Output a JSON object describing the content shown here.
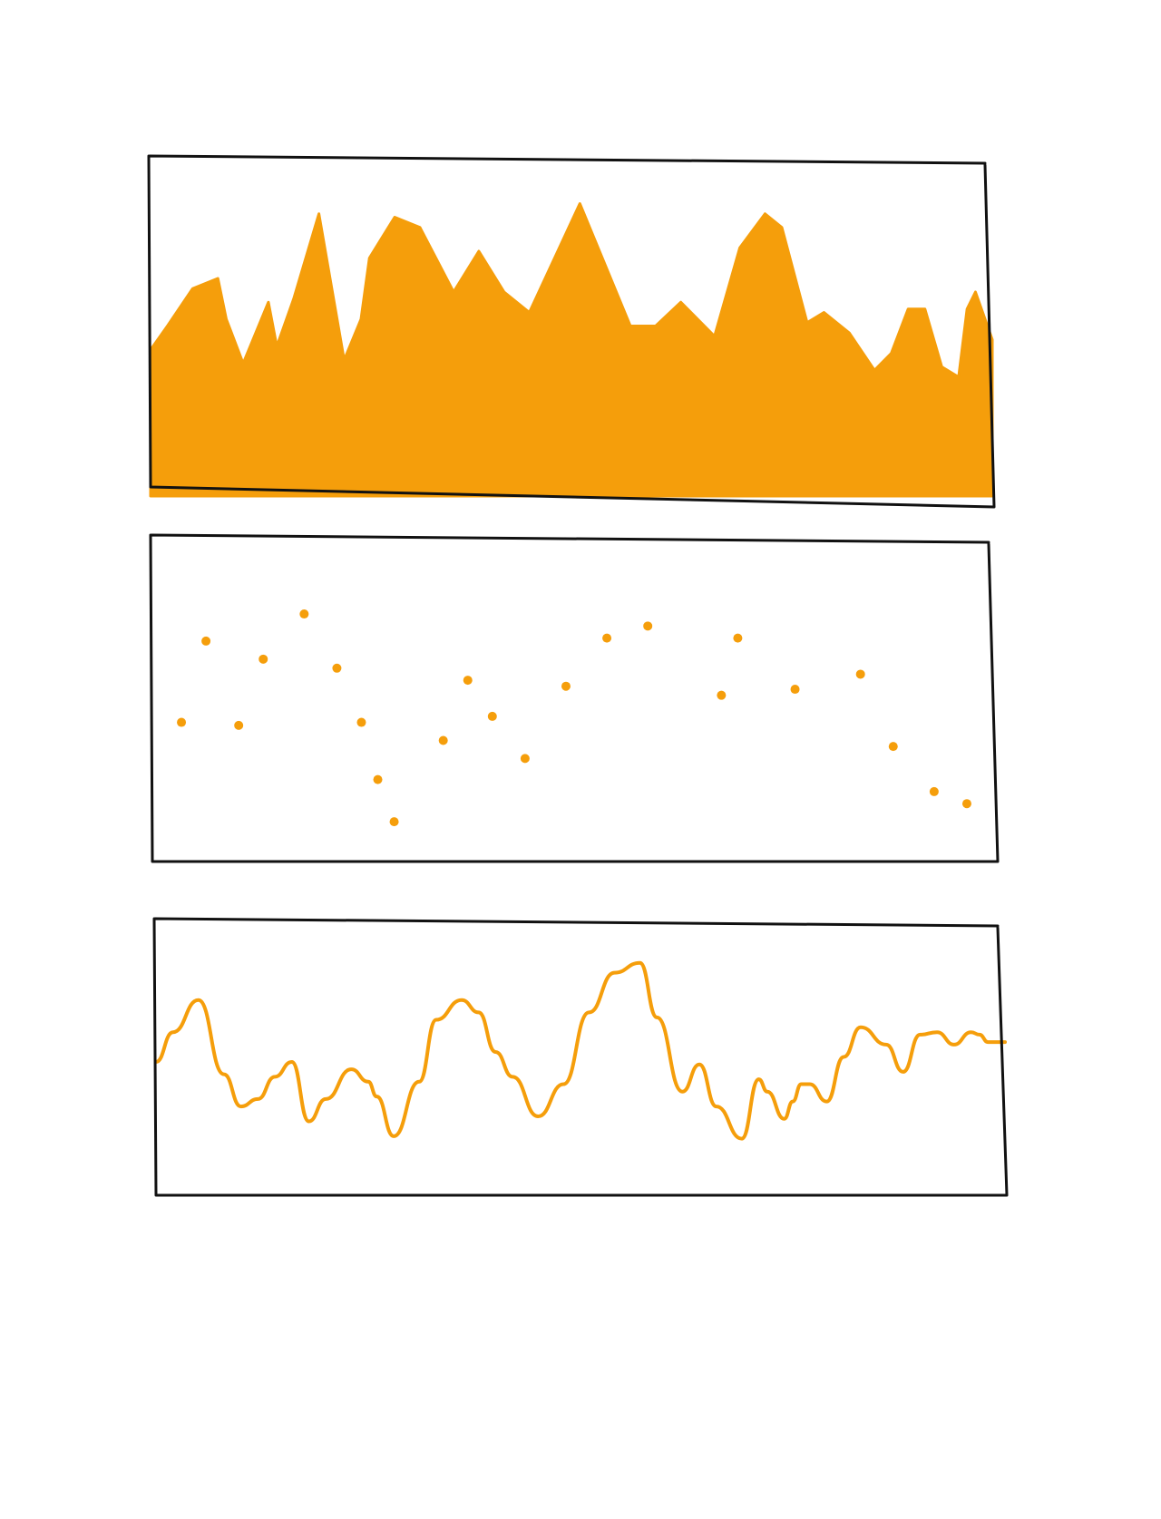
{
  "style": {
    "accent": "#F59E0B",
    "stroke": "#111111",
    "background": "#ffffff"
  },
  "chart_data": [
    {
      "type": "area",
      "title": "",
      "xlabel": "",
      "ylabel": "",
      "grid": false,
      "xlim": [
        0,
        100
      ],
      "ylim": [
        0,
        100
      ],
      "x": [
        0,
        2,
        5,
        8,
        9,
        11,
        14,
        15,
        17,
        20,
        23,
        25,
        26,
        29,
        32,
        36,
        39,
        42,
        45,
        48,
        51,
        54,
        57,
        60,
        63,
        67,
        70,
        73,
        75,
        78,
        80,
        83,
        86,
        88,
        90,
        92,
        94,
        96,
        97,
        98,
        100
      ],
      "series": [
        {
          "values": [
            43,
            50,
            61,
            64,
            52,
            39,
            57,
            44,
            58,
            83,
            40,
            52,
            70,
            82,
            79,
            60,
            72,
            60,
            54,
            70,
            86,
            68,
            50,
            50,
            57,
            47,
            73,
            83,
            79,
            51,
            54,
            48,
            37,
            42,
            55,
            55,
            38,
            35,
            55,
            60,
            46
          ]
        }
      ]
    },
    {
      "type": "scatter",
      "title": "",
      "xlabel": "",
      "ylabel": "",
      "grid": false,
      "xlim": [
        0,
        100
      ],
      "ylim": [
        0,
        100
      ],
      "points": [
        {
          "x": 2,
          "y": 42
        },
        {
          "x": 5,
          "y": 69
        },
        {
          "x": 9,
          "y": 41
        },
        {
          "x": 12,
          "y": 63
        },
        {
          "x": 17,
          "y": 78
        },
        {
          "x": 21,
          "y": 60
        },
        {
          "x": 24,
          "y": 42
        },
        {
          "x": 26,
          "y": 23
        },
        {
          "x": 28,
          "y": 9
        },
        {
          "x": 34,
          "y": 36
        },
        {
          "x": 37,
          "y": 56
        },
        {
          "x": 40,
          "y": 44
        },
        {
          "x": 44,
          "y": 30
        },
        {
          "x": 49,
          "y": 54
        },
        {
          "x": 54,
          "y": 70
        },
        {
          "x": 59,
          "y": 74
        },
        {
          "x": 68,
          "y": 51
        },
        {
          "x": 70,
          "y": 70
        },
        {
          "x": 77,
          "y": 53
        },
        {
          "x": 85,
          "y": 58
        },
        {
          "x": 89,
          "y": 34
        },
        {
          "x": 94,
          "y": 19
        },
        {
          "x": 98,
          "y": 15
        }
      ]
    },
    {
      "type": "line",
      "title": "",
      "xlabel": "",
      "ylabel": "",
      "grid": false,
      "xlim": [
        0,
        100
      ],
      "ylim": [
        0,
        100
      ],
      "x": [
        0,
        2,
        5,
        8,
        10,
        12,
        14,
        16,
        18,
        20,
        23,
        25,
        26,
        28,
        31,
        33,
        36,
        38,
        40,
        42,
        45,
        48,
        51,
        54,
        57,
        59,
        62,
        64,
        66,
        69,
        71,
        72,
        74,
        75,
        76,
        77,
        79,
        81,
        83,
        86,
        88,
        90,
        92,
        94,
        96,
        97,
        98,
        100
      ],
      "series": [
        {
          "values": [
            48,
            60,
            73,
            43,
            30,
            33,
            42,
            48,
            24,
            33,
            45,
            40,
            34,
            18,
            40,
            65,
            73,
            68,
            52,
            42,
            26,
            39,
            68,
            84,
            88,
            66,
            36,
            47,
            30,
            17,
            41,
            36,
            25,
            32,
            39,
            39,
            32,
            50,
            62,
            55,
            44,
            59,
            60,
            55,
            60,
            59,
            56,
            56
          ]
        }
      ]
    }
  ]
}
